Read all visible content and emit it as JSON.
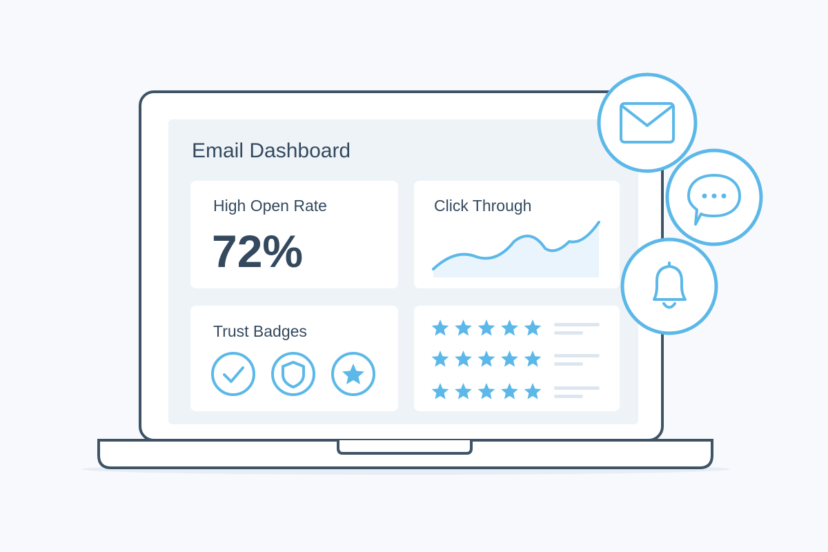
{
  "dashboard": {
    "title": "Email Dashboard",
    "cards": [
      {
        "title": "High Open Rate",
        "value": "72%"
      },
      {
        "title": "Click Through"
      },
      {
        "title": "Trust Badges"
      }
    ]
  }
}
